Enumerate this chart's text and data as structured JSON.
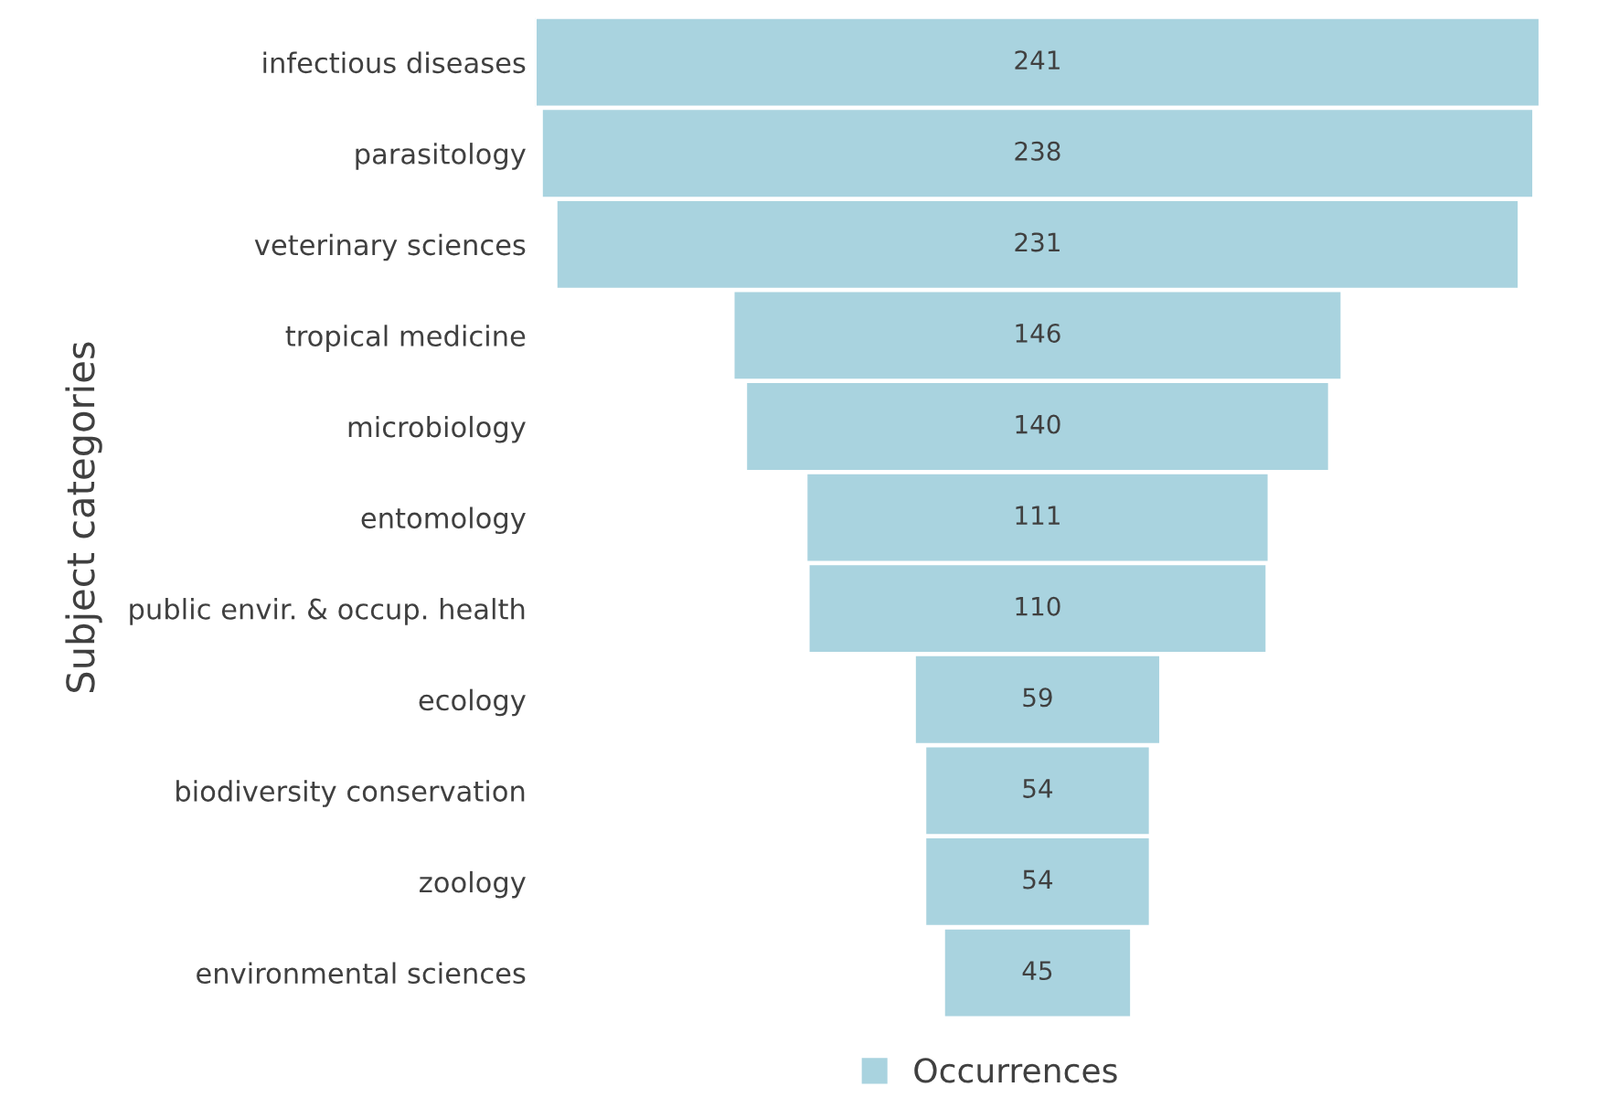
{
  "chart_data": {
    "type": "other",
    "ylabel": "Subject categories",
    "categories": [
      "infectious diseases",
      "parasitology",
      "veterinary sciences",
      "tropical medicine",
      "microbiology",
      "entomology",
      "public envir. & occup. health",
      "ecology",
      "biodiversity conservation",
      "zoology",
      "environmental sciences"
    ],
    "series": [
      {
        "name": "Occurrences",
        "color": "#a9d3df",
        "values": [
          241,
          238,
          231,
          146,
          140,
          111,
          110,
          59,
          54,
          54,
          45
        ]
      }
    ],
    "data_labels": true,
    "legend": "bottom"
  }
}
